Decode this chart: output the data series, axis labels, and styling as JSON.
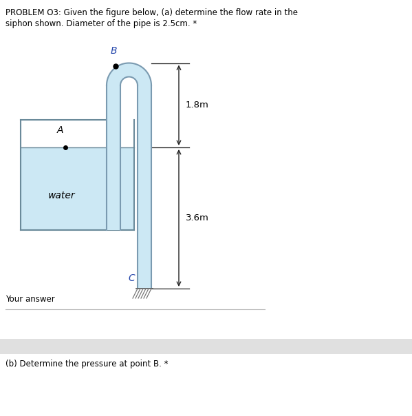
{
  "title_line1": "PROBLEM O3: Given the figure below, (a) determine the flow rate in the",
  "title_line2": "siphon shown. Diameter of the pipe is 2.5cm. *",
  "label_A": "A",
  "label_B": "B",
  "label_C": "C",
  "label_water": "water",
  "dim_18": "1.8m",
  "dim_36": "3.6m",
  "answer_label": "Your answer",
  "part_b": "(b) Determine the pressure at point B. *",
  "water_color": "#cce8f4",
  "pipe_fill_color": "#cce8f4",
  "pipe_line_color": "#7a9ab0",
  "tank_line_color": "#6a8a9a",
  "bg_color": "#ffffff",
  "dim_line_color": "#222222"
}
